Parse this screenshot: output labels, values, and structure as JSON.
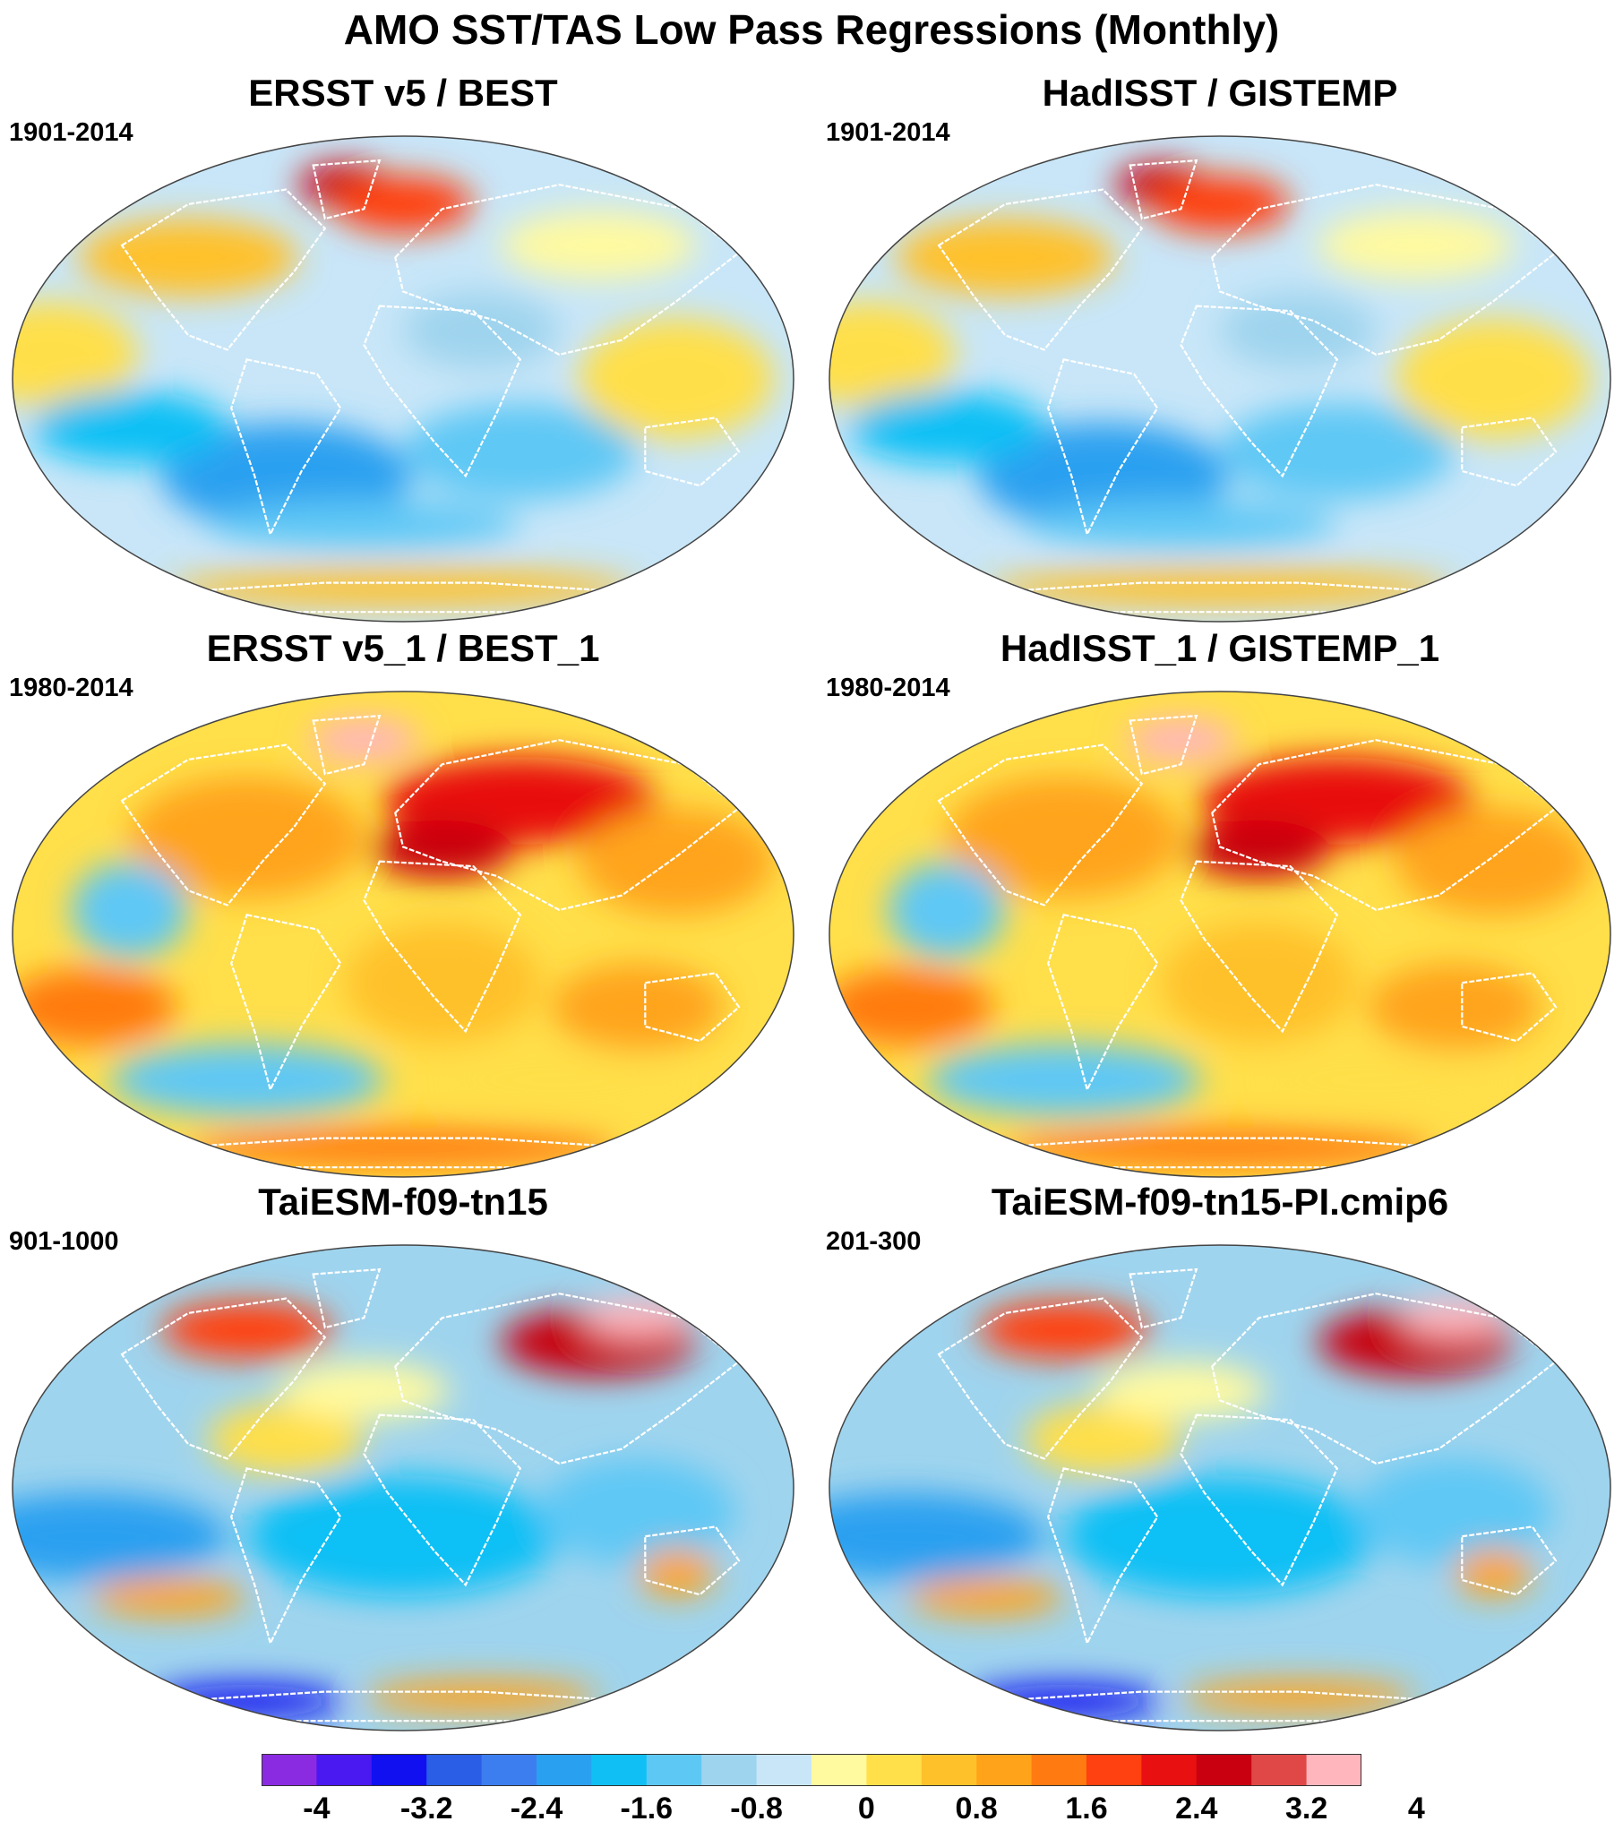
{
  "title": "AMO SST/TAS Low Pass Regressions (Monthly)",
  "panels": [
    {
      "title": "ERSST v5 / BEST",
      "period": "1901-2014",
      "pattern": "historical-long"
    },
    {
      "title": "HadISST / GISTEMP",
      "period": "1901-2014",
      "pattern": "historical-long"
    },
    {
      "title": "ERSST v5_1 / BEST_1",
      "period": "1980-2014",
      "pattern": "recent-warm"
    },
    {
      "title": "HadISST_1 / GISTEMP_1",
      "period": "1980-2014",
      "pattern": "recent-warm"
    },
    {
      "title": "TaiESM-f09-tn15",
      "period": "901-1000",
      "pattern": "model-cool"
    },
    {
      "title": "TaiESM-f09-tn15-PI.cmip6",
      "period": "201-300",
      "pattern": "model-cool"
    }
  ],
  "colorbar": {
    "colors": [
      "#8a2be2",
      "#4a18f0",
      "#1010f0",
      "#2a5ee6",
      "#3c7ef0",
      "#2aa0f0",
      "#10c0f5",
      "#5ec8f5",
      "#9fd4ee",
      "#c8e6f8",
      "#fffaa0",
      "#ffdf4a",
      "#ffc12a",
      "#ffa41a",
      "#ff7a10",
      "#ff4010",
      "#e81010",
      "#c80010",
      "#e04848",
      "#ffb6bd"
    ],
    "labels": [
      "-4",
      "-3.2",
      "-2.4",
      "-1.6",
      "-0.8",
      "0",
      "0.8",
      "1.6",
      "2.4",
      "3.2",
      "4"
    ],
    "min": -4,
    "max": 4,
    "step": 0.4
  }
}
